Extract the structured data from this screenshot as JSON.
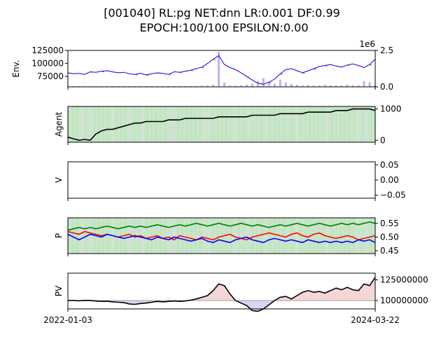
{
  "title_line1": "[001040] RL:pg NET:dnn LR:0.001 DF:0.99",
  "title_line2": "EPOCH:100/100 EPSILON:0.00",
  "x_tick_labels": [
    "2022-01-03",
    "2024-03-22"
  ],
  "colors": {
    "red": "#ff0000",
    "blue": "#0000ff",
    "green": "#008000",
    "black": "#000000",
    "bg_green": "#c8e6c8",
    "pos_fill": "#f5d6d6",
    "neg_fill": "#d6d6f5"
  },
  "chart_data": [
    {
      "type": "line",
      "ylabel": "Env.",
      "ylim": [
        55000,
        125000
      ],
      "y_ticks": [
        75000,
        100000,
        125000
      ],
      "y_tick_labels": [
        "75000",
        "100000",
        "125000"
      ],
      "secondary_ylim": [
        0,
        2.5
      ],
      "secondary_y_ticks": [
        0,
        2.5
      ],
      "secondary_y_tick_labels": [
        "0.0",
        "2.5"
      ],
      "secondary_exponent_label": "1e6",
      "series": [
        {
          "values": [
            82000,
            80000,
            81000,
            79000,
            84000,
            83000,
            85000,
            86000,
            84000,
            82000,
            83000,
            80000,
            79000,
            81000,
            78000,
            80000,
            82000,
            81000,
            79000,
            84000,
            83000,
            85000,
            87000,
            90000,
            93000,
            100000,
            108000,
            115000,
            98000,
            92000,
            88000,
            82000,
            75000,
            68000,
            62000,
            60000,
            64000,
            70000,
            80000,
            88000,
            90000,
            86000,
            82000,
            86000,
            90000,
            94000,
            96000,
            98000,
            95000,
            93000,
            97000,
            99000,
            96000,
            92000,
            98000,
            108000
          ]
        }
      ],
      "volume": [
        0.05,
        0.05,
        0.06,
        0.05,
        0.05,
        0.04,
        0.05,
        0.06,
        0.05,
        0.05,
        0.05,
        0.06,
        0.05,
        0.05,
        0.05,
        0.06,
        0.05,
        0.05,
        0.06,
        0.05,
        0.05,
        0.06,
        0.05,
        0.05,
        0.08,
        0.1,
        0.15,
        2.4,
        0.3,
        0.1,
        0.08,
        0.1,
        0.15,
        0.2,
        0.4,
        0.6,
        0.3,
        0.2,
        0.5,
        0.3,
        0.2,
        0.15,
        0.1,
        0.12,
        0.1,
        0.1,
        0.15,
        0.12,
        0.1,
        0.1,
        0.15,
        0.12,
        0.1,
        0.4,
        0.3,
        0.1
      ]
    },
    {
      "type": "line",
      "ylabel": "Agent",
      "ylim": [
        -60,
        1080
      ],
      "y_ticks": [
        0,
        1000
      ],
      "y_tick_labels": [
        "0",
        "1000"
      ],
      "series": [
        {
          "values": [
            100,
            50,
            0,
            30,
            0,
            200,
            300,
            350,
            350,
            400,
            450,
            500,
            550,
            550,
            600,
            600,
            600,
            600,
            650,
            650,
            650,
            700,
            700,
            700,
            700,
            700,
            700,
            750,
            750,
            750,
            750,
            750,
            750,
            800,
            800,
            800,
            800,
            800,
            850,
            850,
            850,
            850,
            850,
            900,
            900,
            900,
            900,
            900,
            950,
            950,
            950,
            1000,
            1000,
            1000,
            1000,
            950
          ]
        }
      ]
    },
    {
      "type": "line",
      "ylabel": "V",
      "ylim": [
        -0.06,
        0.06
      ],
      "y_ticks": [
        0.05,
        0.0,
        -0.05
      ],
      "y_tick_labels": [
        "0.05",
        "0.00",
        "−0.05"
      ],
      "series": []
    },
    {
      "type": "line",
      "ylabel": "P",
      "ylim": [
        0.44,
        0.57
      ],
      "y_ticks": [
        0.55,
        0.5,
        0.45
      ],
      "y_tick_labels": [
        "0.55",
        "0.50",
        "0.45"
      ],
      "series": [
        {
          "color": "#ff0000",
          "values": [
            0.52,
            0.515,
            0.51,
            0.52,
            0.515,
            0.51,
            0.505,
            0.51,
            0.505,
            0.5,
            0.505,
            0.51,
            0.5,
            0.505,
            0.495,
            0.5,
            0.505,
            0.495,
            0.5,
            0.49,
            0.505,
            0.5,
            0.495,
            0.49,
            0.5,
            0.495,
            0.49,
            0.5,
            0.505,
            0.51,
            0.5,
            0.495,
            0.49,
            0.5,
            0.505,
            0.51,
            0.515,
            0.51,
            0.505,
            0.5,
            0.51,
            0.515,
            0.505,
            0.5,
            0.51,
            0.515,
            0.505,
            0.5,
            0.495,
            0.5,
            0.505,
            0.5,
            0.49,
            0.495,
            0.5,
            0.505
          ]
        },
        {
          "color": "#0000ff",
          "values": [
            0.51,
            0.5,
            0.49,
            0.5,
            0.51,
            0.505,
            0.5,
            0.51,
            0.505,
            0.5,
            0.495,
            0.5,
            0.505,
            0.5,
            0.495,
            0.49,
            0.5,
            0.495,
            0.49,
            0.5,
            0.495,
            0.49,
            0.485,
            0.49,
            0.495,
            0.485,
            0.48,
            0.49,
            0.485,
            0.48,
            0.49,
            0.495,
            0.5,
            0.49,
            0.485,
            0.48,
            0.49,
            0.495,
            0.49,
            0.485,
            0.49,
            0.485,
            0.48,
            0.49,
            0.485,
            0.48,
            0.485,
            0.48,
            0.485,
            0.48,
            0.485,
            0.48,
            0.49,
            0.485,
            0.49,
            0.48
          ]
        },
        {
          "color": "#008000",
          "values": [
            0.525,
            0.53,
            0.535,
            0.53,
            0.535,
            0.53,
            0.535,
            0.54,
            0.535,
            0.53,
            0.535,
            0.54,
            0.535,
            0.54,
            0.535,
            0.54,
            0.545,
            0.54,
            0.535,
            0.54,
            0.545,
            0.54,
            0.545,
            0.55,
            0.545,
            0.54,
            0.545,
            0.55,
            0.545,
            0.54,
            0.545,
            0.55,
            0.545,
            0.54,
            0.545,
            0.54,
            0.535,
            0.54,
            0.545,
            0.54,
            0.545,
            0.55,
            0.545,
            0.54,
            0.545,
            0.55,
            0.545,
            0.54,
            0.545,
            0.55,
            0.545,
            0.55,
            0.545,
            0.55,
            0.555,
            0.55
          ]
        }
      ]
    },
    {
      "type": "line",
      "ylabel": "PV",
      "ylim": [
        90000000,
        133000000
      ],
      "baseline": 100000000,
      "y_ticks": [
        125000000,
        100000000
      ],
      "y_tick_labels": [
        "125000000",
        "100000000"
      ],
      "series": [
        {
          "values": [
            100000000,
            100000000,
            99800000,
            100200000,
            100000000,
            99500000,
            99000000,
            99200000,
            98500000,
            98000000,
            97500000,
            96000000,
            95500000,
            96500000,
            97000000,
            98000000,
            99000000,
            98500000,
            99000000,
            99500000,
            99000000,
            99500000,
            100500000,
            102000000,
            104000000,
            106000000,
            112000000,
            120000000,
            118000000,
            108000000,
            100000000,
            97000000,
            94000000,
            88000000,
            87000000,
            90000000,
            95000000,
            100000000,
            104000000,
            105000000,
            102000000,
            106000000,
            110000000,
            112000000,
            110000000,
            111000000,
            109000000,
            112000000,
            115000000,
            113000000,
            116000000,
            113000000,
            112000000,
            120000000,
            118000000,
            128000000
          ]
        }
      ]
    }
  ]
}
